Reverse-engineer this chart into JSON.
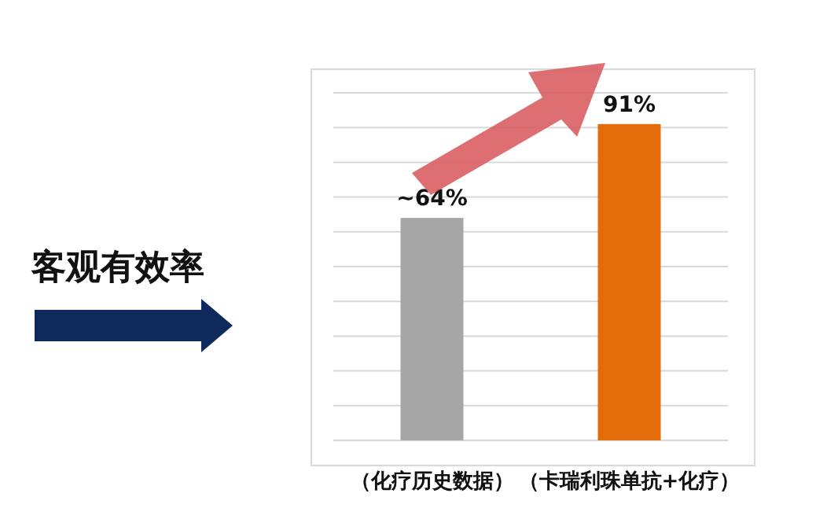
{
  "chart_data": {
    "type": "bar",
    "title": "客观有效率",
    "categories": [
      "（化疗历史数据）",
      "（卡瑞利珠单抗+化疗）"
    ],
    "values": [
      64,
      91
    ],
    "colors": [
      "#a6a6a6",
      "#e36c0a"
    ],
    "value_labels": [
      "~64%",
      "91%"
    ],
    "ylim": [
      0,
      100
    ],
    "yticks": [
      {
        "value": 0,
        "label": null
      },
      {
        "value": 10,
        "label": null
      },
      {
        "value": 20,
        "label": null
      },
      {
        "value": 30,
        "label": null
      },
      {
        "value": 40,
        "label": null
      },
      {
        "value": 50,
        "label": null
      },
      {
        "value": 60,
        "label": null
      },
      {
        "value": 70,
        "label": null
      },
      {
        "value": 80,
        "label": null
      },
      {
        "value": 90,
        "label": null
      },
      {
        "value": 100,
        "label": null
      }
    ],
    "grid": "y",
    "tick_labels": "x"
  }
}
